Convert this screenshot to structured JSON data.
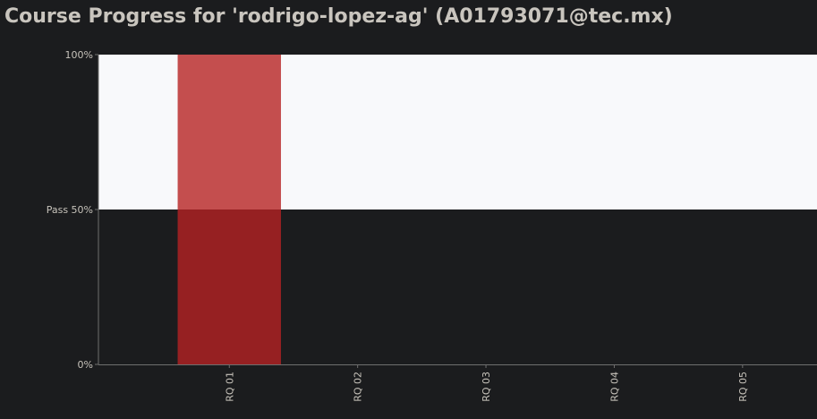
{
  "page_title": "Course Progress for 'rodrigo-lopez-ag' (A01793071@tec.mx)",
  "chart_data": {
    "type": "bar",
    "categories": [
      "RQ 01",
      "RQ 02",
      "RQ 03",
      "RQ 04",
      "RQ 05"
    ],
    "values": [
      100,
      0,
      0,
      0,
      0
    ],
    "ylim": [
      0,
      100
    ],
    "pass_threshold": 50,
    "y_ticks": [
      {
        "value": 0,
        "label": "0%"
      },
      {
        "value": 50,
        "label": "Pass 50%"
      },
      {
        "value": 100,
        "label": "100%"
      }
    ],
    "colors": {
      "bar_above_pass": "#c44e4e",
      "bar_below_pass": "#962022",
      "pass_zone": "#f8f9fb",
      "fail_zone": "#1b1c1e",
      "axis": "#6f6f6f",
      "tick_text": "#c7c3bb"
    }
  }
}
